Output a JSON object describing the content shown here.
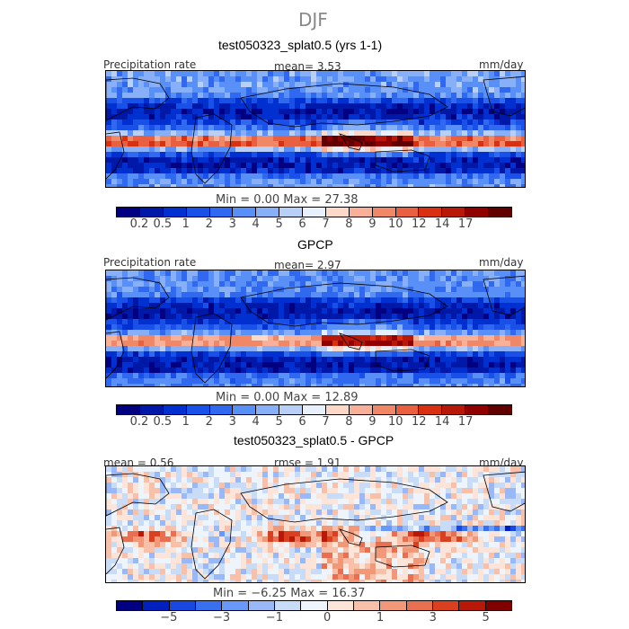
{
  "season": "DJF",
  "panels": [
    {
      "title": "test050323_splat0.5 (yrs 1-1)",
      "left_label": "Precipitation rate",
      "center_label": "mean=    3.53",
      "right_label": "mm/day",
      "minmax": "Min  =     0.00  Max  =   27.38",
      "type": "precip"
    },
    {
      "title": "GPCP",
      "left_label": "Precipitation rate",
      "center_label": "mean=    2.97",
      "right_label": "mm/day",
      "minmax": "Min  =     0.00  Max  =   12.89",
      "type": "precip"
    },
    {
      "title": "test050323_splat0.5 - GPCP",
      "left_label": "mean =   0.56",
      "center_label": "rmse =    1.91",
      "right_label": "mm/day",
      "minmax": "Min  =    −6.25  Max  =   16.37",
      "type": "diff"
    }
  ],
  "precip_scale": {
    "colors": [
      "#000080",
      "#0018a8",
      "#0030d0",
      "#1850e8",
      "#3068f0",
      "#5890f8",
      "#88b0f8",
      "#b8d0f8",
      "#e8f0fc",
      "#fcd8c8",
      "#f8b098",
      "#f08868",
      "#e86040",
      "#d83010",
      "#b81808",
      "#900000",
      "#600000"
    ],
    "labels": [
      "0.2",
      "0.5",
      "1",
      "2",
      "3",
      "4",
      "5",
      "6",
      "7",
      "8",
      "9",
      "10",
      "12",
      "14",
      "17"
    ]
  },
  "diff_scale": {
    "colors": [
      "#000080",
      "#0020c0",
      "#1848e0",
      "#3870f0",
      "#6898f8",
      "#98b8f8",
      "#c8dcf8",
      "#eef4fc",
      "#fce4d8",
      "#f8c0a8",
      "#f09878",
      "#e87050",
      "#d84020",
      "#b81808",
      "#800000"
    ],
    "labels": [
      "−5",
      "−3",
      "−1",
      "0",
      "1",
      "3",
      "5"
    ]
  }
}
